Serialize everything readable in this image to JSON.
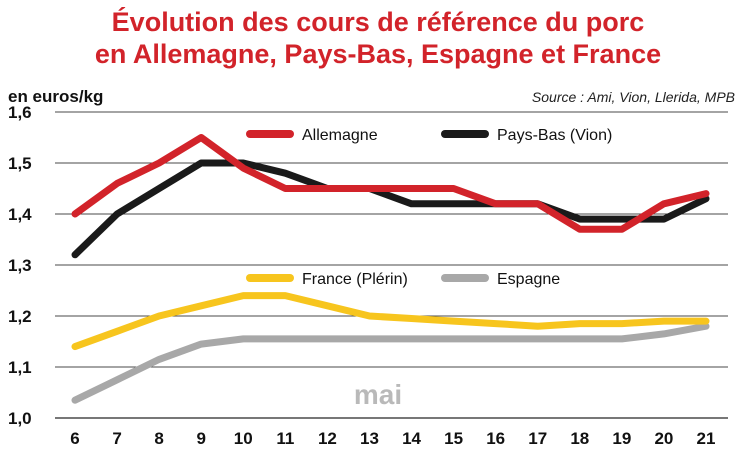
{
  "chart_data": {
    "type": "line",
    "title_lines": [
      "Évolution des cours de référence du porc",
      "en Allemagne, Pays-Bas, Espagne et France"
    ],
    "unit_label": "en euros/kg",
    "source": "Source : Ami, Vion, Llerida, MPB",
    "annotation": "mai",
    "x": [
      6,
      7,
      8,
      9,
      10,
      11,
      12,
      13,
      14,
      15,
      16,
      17,
      18,
      19,
      20,
      21
    ],
    "x_tick_labels": [
      "6",
      "7",
      "8",
      "9",
      "10",
      "11",
      "12",
      "13",
      "14",
      "15",
      "16",
      "17",
      "18",
      "19",
      "20",
      "21"
    ],
    "y_tick_labels": [
      "1,0",
      "1,1",
      "1,2",
      "1,3",
      "1,4",
      "1,5",
      "1,6"
    ],
    "ylim": [
      1.0,
      1.6
    ],
    "grid": true,
    "series": [
      {
        "name": "Allemagne",
        "color": "#d2232a",
        "values": [
          1.4,
          1.46,
          1.5,
          1.55,
          1.49,
          1.45,
          1.45,
          1.45,
          1.45,
          1.45,
          1.42,
          1.42,
          1.37,
          1.37,
          1.42,
          1.44
        ]
      },
      {
        "name": "Pays-Bas (Vion)",
        "color": "#1a1a1a",
        "values": [
          1.32,
          1.4,
          1.45,
          1.5,
          1.5,
          1.48,
          1.45,
          1.45,
          1.42,
          1.42,
          1.42,
          1.42,
          1.39,
          1.39,
          1.39,
          1.43
        ]
      },
      {
        "name": "France (Plérin)",
        "color": "#f7c51e",
        "values": [
          1.14,
          1.17,
          1.2,
          1.22,
          1.24,
          1.24,
          1.22,
          1.2,
          1.195,
          1.19,
          1.185,
          1.18,
          1.185,
          1.185,
          1.19,
          1.19
        ]
      },
      {
        "name": "Espagne",
        "color": "#a8a8a8",
        "values": [
          1.035,
          1.075,
          1.115,
          1.145,
          1.155,
          1.155,
          1.155,
          1.155,
          1.155,
          1.155,
          1.155,
          1.155,
          1.155,
          1.155,
          1.165,
          1.18
        ]
      }
    ]
  }
}
